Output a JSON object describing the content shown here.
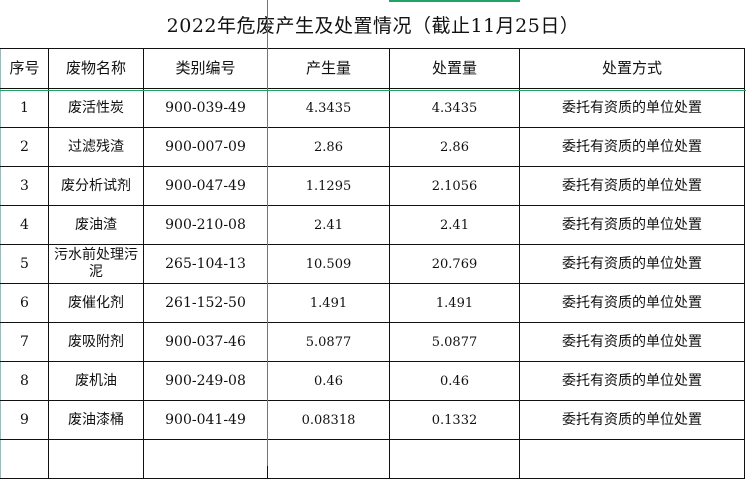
{
  "title": "2022年危废产生及处置情况（截止11月25日）",
  "columns": [
    "序号",
    "废物名称",
    "类别编号",
    "产生量",
    "处置量",
    "处置方式"
  ],
  "rows": [
    [
      "1",
      "废活性炭",
      "900-039-49",
      "4.3435",
      "4.3435",
      "委托有资质的单位处置"
    ],
    [
      "2",
      "过滤残渣",
      "900-007-09",
      "2.86",
      "2.86",
      "委托有资质的单位处置"
    ],
    [
      "3",
      "废分析试剂",
      "900-047-49",
      "1.1295",
      "2.1056",
      "委托有资质的单位处置"
    ],
    [
      "4",
      "废油渣",
      "900-210-08",
      "2.41",
      "2.41",
      "委托有资质的单位处置"
    ],
    [
      "5",
      "污水前处理污泥",
      "265-104-13",
      "10.509",
      "20.769",
      "委托有资质的单位处置"
    ],
    [
      "6",
      "废催化剂",
      "261-152-50",
      "1.491",
      "1.491",
      "委托有资质的单位处置"
    ],
    [
      "7",
      "废吸附剂",
      "900-037-46",
      "5.0877",
      "5.0877",
      "委托有资质的单位处置"
    ],
    [
      "8",
      "废机油",
      "900-249-08",
      "0.46",
      "0.46",
      "委托有资质的单位处置"
    ],
    [
      "9",
      "废油漆桶",
      "900-041-49",
      "0.08318",
      "0.1332",
      "委托有资质的单位处置"
    ]
  ],
  "colors": {
    "selection": "#21a366",
    "grid": "#111111"
  }
}
